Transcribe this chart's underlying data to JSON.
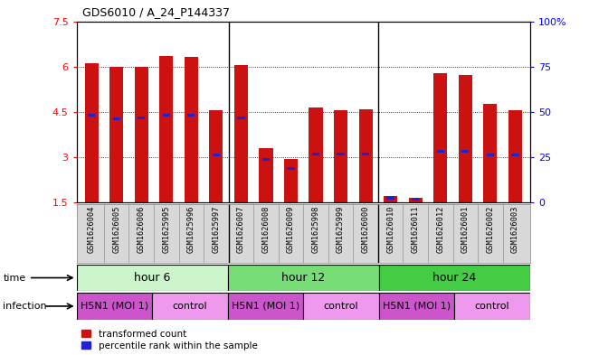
{
  "title": "GDS6010 / A_24_P144337",
  "samples": [
    "GSM1626004",
    "GSM1626005",
    "GSM1626006",
    "GSM1625995",
    "GSM1625996",
    "GSM1625997",
    "GSM1626007",
    "GSM1626008",
    "GSM1626009",
    "GSM1625998",
    "GSM1625999",
    "GSM1626000",
    "GSM1626010",
    "GSM1626011",
    "GSM1626012",
    "GSM1626001",
    "GSM1626002",
    "GSM1626003"
  ],
  "red_values": [
    6.12,
    6.0,
    5.98,
    6.35,
    6.32,
    4.55,
    6.05,
    3.3,
    2.93,
    4.65,
    4.55,
    4.58,
    1.72,
    1.65,
    5.78,
    5.72,
    4.75,
    4.55
  ],
  "blue_values": [
    4.4,
    4.28,
    4.3,
    4.4,
    4.38,
    3.07,
    4.3,
    2.93,
    2.62,
    3.1,
    3.1,
    3.1,
    1.65,
    1.6,
    3.2,
    3.18,
    3.08,
    3.08
  ],
  "ylim_left": [
    1.5,
    7.5
  ],
  "ylim_right": [
    0,
    100
  ],
  "yticks_left": [
    1.5,
    3.0,
    4.5,
    6.0,
    7.5
  ],
  "yticks_right": [
    0,
    25,
    50,
    75,
    100
  ],
  "ytick_labels_left": [
    "1.5",
    "3",
    "4.5",
    "6",
    "7.5"
  ],
  "ytick_labels_right": [
    "0",
    "25",
    "50",
    "75",
    "100%"
  ],
  "time_groups": [
    {
      "label": "hour 6",
      "start": 0,
      "end": 6,
      "color": "#ccf5cc"
    },
    {
      "label": "hour 12",
      "start": 6,
      "end": 12,
      "color": "#77dd77"
    },
    {
      "label": "hour 24",
      "start": 12,
      "end": 18,
      "color": "#44cc44"
    }
  ],
  "infection_groups": [
    {
      "label": "H5N1 (MOI 1)",
      "start": 0,
      "end": 3,
      "color": "#cc55cc"
    },
    {
      "label": "control",
      "start": 3,
      "end": 6,
      "color": "#ee99ee"
    },
    {
      "label": "H5N1 (MOI 1)",
      "start": 6,
      "end": 9,
      "color": "#cc55cc"
    },
    {
      "label": "control",
      "start": 9,
      "end": 12,
      "color": "#ee99ee"
    },
    {
      "label": "H5N1 (MOI 1)",
      "start": 12,
      "end": 15,
      "color": "#cc55cc"
    },
    {
      "label": "control",
      "start": 15,
      "end": 18,
      "color": "#ee99ee"
    }
  ],
  "bar_color": "#cc1111",
  "blue_color": "#2222cc",
  "bar_width": 0.55,
  "background_color": "#ffffff",
  "plot_bg": "#ffffff"
}
